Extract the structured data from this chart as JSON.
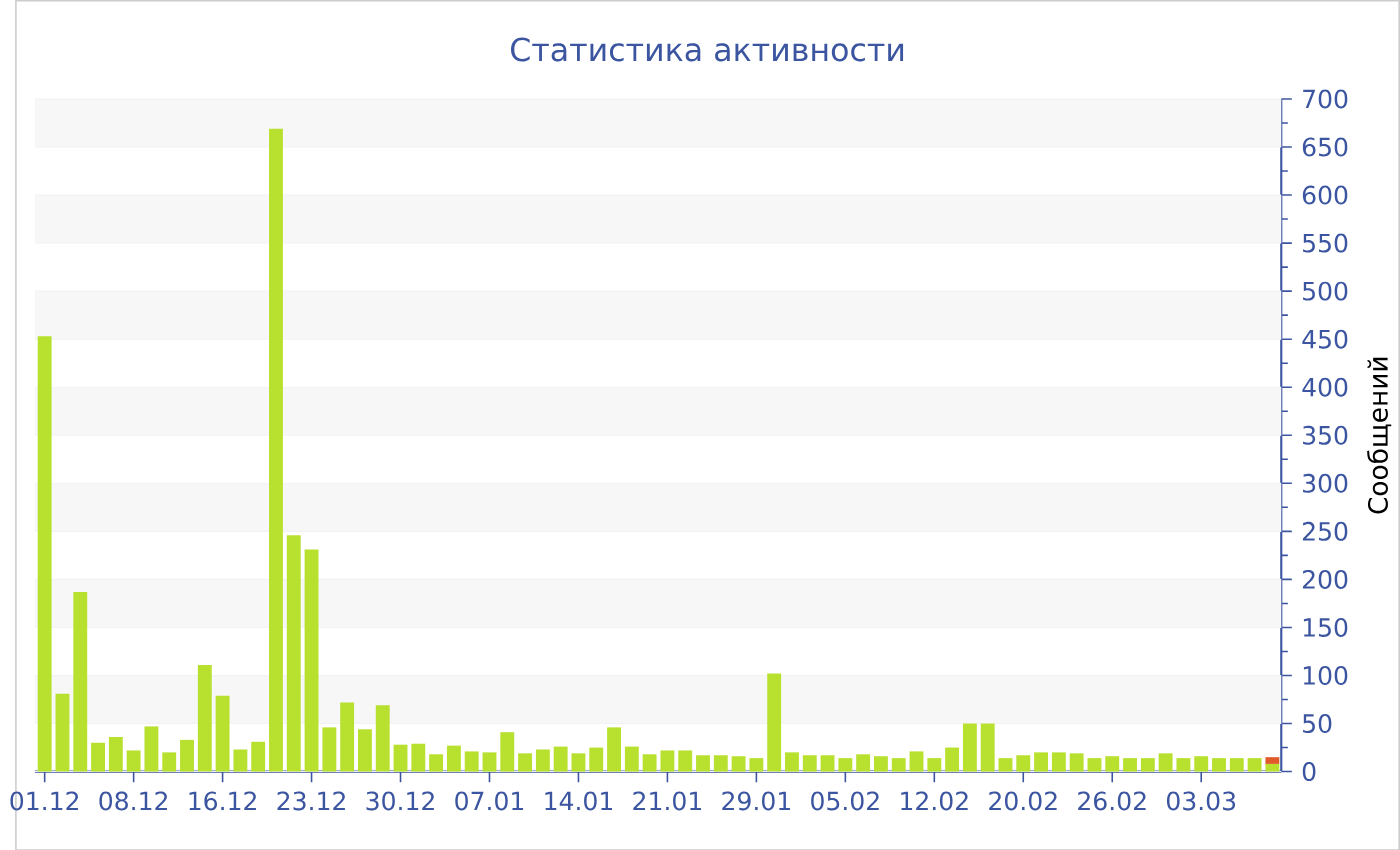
{
  "chart_data": {
    "type": "bar",
    "title": "Статистика активности",
    "ylabel": "Сообщений",
    "stacked": true,
    "grid": "y",
    "categories": [
      "01.12",
      null,
      null,
      null,
      null,
      "08.12",
      null,
      null,
      null,
      null,
      "16.12",
      null,
      null,
      null,
      null,
      "23.12",
      null,
      null,
      null,
      null,
      "30.12",
      null,
      null,
      null,
      null,
      "07.01",
      null,
      null,
      null,
      null,
      "14.01",
      null,
      null,
      null,
      null,
      "21.01",
      null,
      null,
      null,
      null,
      "29.01",
      null,
      null,
      null,
      null,
      "05.02",
      null,
      null,
      null,
      null,
      "12.02",
      null,
      null,
      null,
      null,
      "20.02",
      null,
      null,
      null,
      null,
      "26.02",
      null,
      null,
      null,
      null,
      "03.03",
      null,
      null,
      null,
      null
    ],
    "series": [
      {
        "color": "#b8e02e",
        "values": [
          453,
          81,
          187,
          30,
          36,
          22,
          47,
          20,
          33,
          111,
          79,
          23,
          31,
          669,
          246,
          231,
          46,
          72,
          44,
          69,
          28,
          29,
          18,
          27,
          21,
          20,
          41,
          19,
          23,
          26,
          19,
          25,
          46,
          26,
          18,
          22,
          22,
          17,
          17,
          16,
          14,
          102,
          20,
          17,
          17,
          14,
          18,
          16,
          14,
          21,
          14,
          25,
          50,
          50,
          14,
          17,
          20,
          20,
          19,
          14,
          16,
          14,
          14,
          19,
          14,
          16,
          14,
          14,
          14,
          8
        ]
      },
      {
        "color": "#e05a2a",
        "values": [
          null,
          null,
          null,
          null,
          null,
          null,
          null,
          null,
          null,
          null,
          null,
          null,
          null,
          null,
          null,
          null,
          null,
          null,
          null,
          null,
          null,
          null,
          null,
          null,
          null,
          null,
          null,
          null,
          null,
          null,
          null,
          null,
          null,
          null,
          null,
          null,
          null,
          null,
          null,
          null,
          null,
          null,
          null,
          null,
          null,
          null,
          null,
          null,
          null,
          null,
          null,
          null,
          null,
          null,
          null,
          null,
          null,
          null,
          null,
          null,
          null,
          null,
          null,
          null,
          null,
          null,
          null,
          null,
          null,
          7
        ]
      }
    ],
    "ylim": [
      0,
      700
    ],
    "yticks": [
      0,
      50,
      100,
      150,
      200,
      250,
      300,
      350,
      400,
      450,
      500,
      550,
      600,
      650,
      700
    ]
  }
}
